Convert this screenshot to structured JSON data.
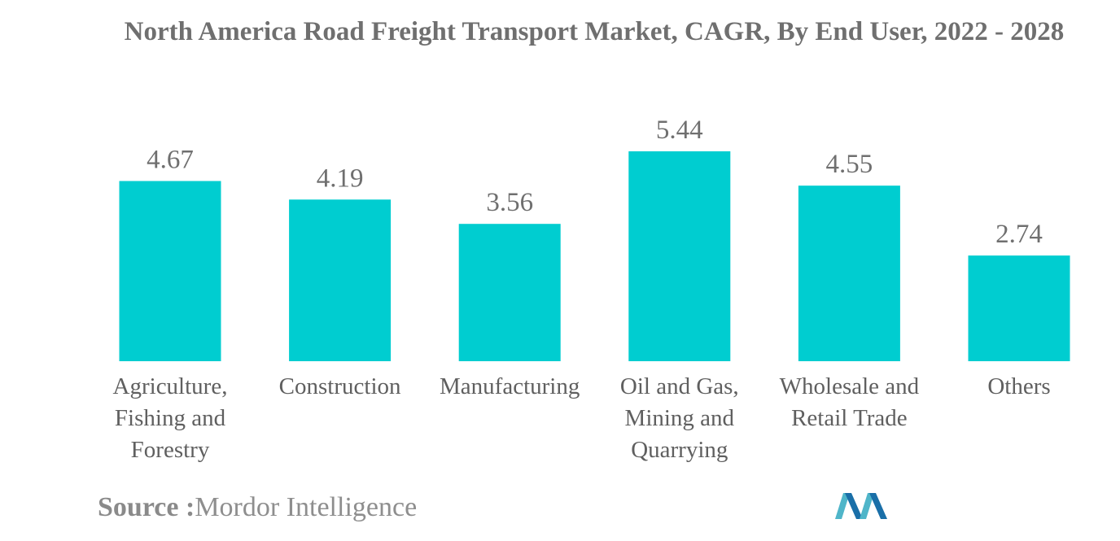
{
  "chart_data": {
    "type": "bar",
    "title": "North America Road Freight Transport Market, CAGR, By End User, 2022 - 2028",
    "categories": [
      "Agriculture, Fishing and Forestry",
      "Construction",
      "Manufacturing",
      "Oil and Gas, Mining and Quarrying",
      "Wholesale and Retail Trade",
      "Others"
    ],
    "category_lines": [
      [
        "Agriculture,",
        "Fishing and",
        "Forestry"
      ],
      [
        "Construction"
      ],
      [
        "Manufacturing"
      ],
      [
        "Oil and Gas,",
        "Mining and",
        "Quarrying"
      ],
      [
        "Wholesale and",
        "Retail Trade"
      ],
      [
        "Others"
      ]
    ],
    "values": [
      4.67,
      4.19,
      3.56,
      5.44,
      4.55,
      2.74
    ],
    "value_labels": [
      "4.67",
      "4.19",
      "3.56",
      "5.44",
      "4.55",
      "2.74"
    ],
    "ylim": [
      0,
      5.44
    ],
    "grid": false,
    "legend": "none",
    "bar_color": "#00cdd0"
  },
  "source": {
    "label": "Source :",
    "name": "Mordor Intelligence"
  },
  "logo": {
    "icon": "mordor-intelligence-logo",
    "colors": [
      "#4fb5c9",
      "#1a6fa8"
    ]
  }
}
